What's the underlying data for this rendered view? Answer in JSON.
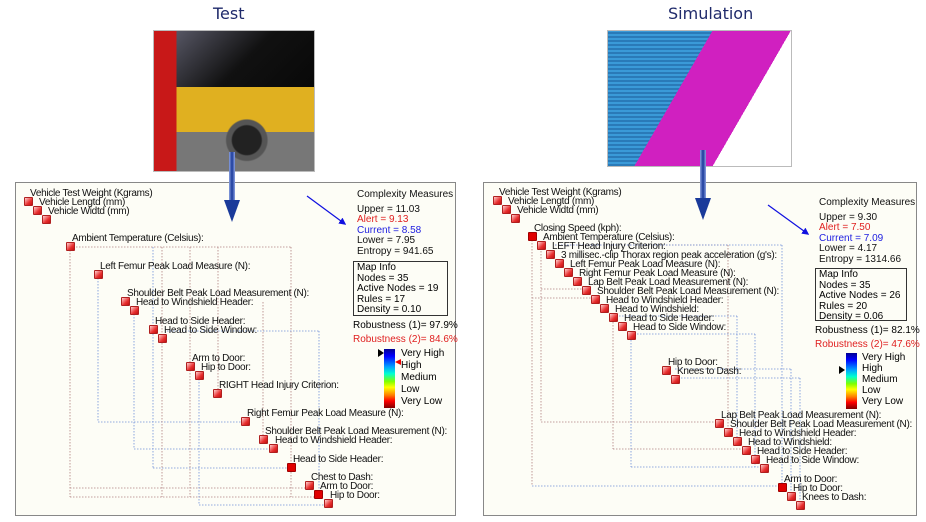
{
  "titles": {
    "test": "Test",
    "simulation": "Simulation"
  },
  "colors": {
    "node": "#e83030",
    "alert": "#e02020",
    "current": "#2020e0",
    "arrow": "#1a3a9a",
    "connector_red": "#b07070",
    "connector_blue": "#6080d0"
  },
  "test": {
    "nodes": [
      "Vehicle Test Weight (Kgrams)",
      "Vehicle Lengtd (mm)",
      "Vehicle Widtd (mm)",
      "Ambient Temperature (Celsius):",
      "Left Femur Peak Load Measure (N):",
      "Shoulder Belt Peak Load Measurement (N):",
      "Head to Windshield Header:",
      "Head to Side Header:",
      "Head to Side Window:",
      "Arm to Door:",
      "Hip to Door:",
      "RIGHT Head Injury Criterion:",
      "Right Femur Peak Load Measure (N):",
      "Shoulder Belt Peak Load Measurement (N):",
      "Head to Windshield Header:",
      "Head to Side Header:",
      "Chest to Dash:",
      "Arm to Door:",
      "Hip to Door:"
    ],
    "complexity": {
      "title": "Complexity Measures",
      "upper": "Upper = 11.03",
      "alert": "Alert = 9.13",
      "current": "Current = 8.58",
      "lower": "Lower = 7.95",
      "entropy": "Entropy = 941.65"
    },
    "map_info": {
      "title": "Map Info",
      "nodes": "Nodes = 35",
      "active_nodes": "Active Nodes = 19",
      "rules": "Rules = 17",
      "density": "Density = 0.10"
    },
    "robustness1": "Robustness (1)= 97.9%",
    "robustness2": "Robustness (2)= 84.6%",
    "scale": [
      "Very High",
      "High",
      "Medium",
      "Low",
      "Very Low"
    ]
  },
  "simulation": {
    "nodes": [
      "Vehicle Test Weight (Kgrams)",
      "Vehicle Lengtd (mm)",
      "Vehicle Widtd (mm)",
      "Closing Speed (kph):",
      "Ambient Temperature (Celsius):",
      "LEFT Head Injury Criterion:",
      "3 millisec.-clip Thorax region peak acceleration (g's):",
      "Left Femur Peak Load Measure (N):",
      "Right Femur Peak Load Measure (N):",
      "Lap Belt Peak Load Measurement (N):",
      "Shoulder Belt Peak Load Measurement (N):",
      "Head to Windshield Header:",
      "Head to Windshield:",
      "Head to Side Header:",
      "Head to Side Window:",
      "Hip to Door:",
      "Knees to Dash:",
      "Lap Belt Peak Load Measurement (N):",
      "Shoulder Belt Peak Load Measurement (N):",
      "Head to Windshield Header:",
      "Head to Windshield:",
      "Head to Side Header:",
      "Head to Side Window:",
      "Arm to Door:",
      "Hip to Door:",
      "Knees to Dash:"
    ],
    "complexity": {
      "title": "Complexity Measures",
      "upper": "Upper = 9.30",
      "alert": "Alert = 7.50",
      "current": "Current = 7.09",
      "lower": "Lower = 4.17",
      "entropy": "Entropy = 1314.66"
    },
    "map_info": {
      "title": "Map Info",
      "nodes": "Nodes = 35",
      "active_nodes": "Active Nodes = 26",
      "rules": "Rules = 20",
      "density": "Density = 0.06"
    },
    "robustness1": "Robustness (1)= 82.1%",
    "robustness2": "Robustness (2)= 47.6%",
    "scale": [
      "Very High",
      "High",
      "Medium",
      "Low",
      "Very Low"
    ]
  }
}
